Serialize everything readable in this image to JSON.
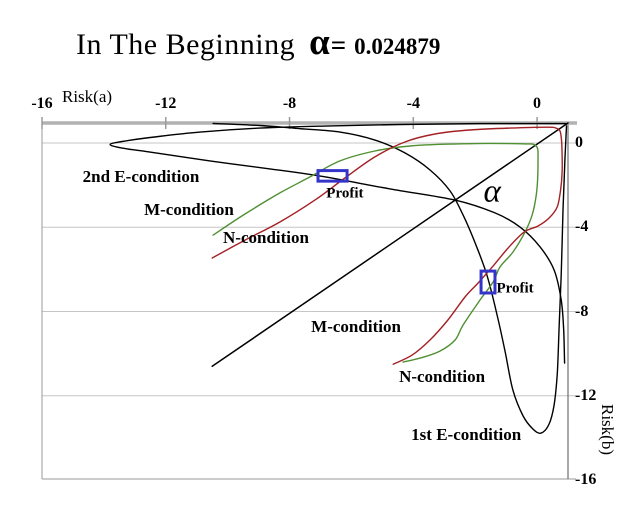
{
  "title": {
    "text": "In The Beginning",
    "alpha": "α",
    "equals": "=",
    "value": "0.024879"
  },
  "axes": {
    "x": {
      "label": "Risk(a)",
      "ticks": [
        -16,
        -12,
        -8,
        -4,
        0
      ],
      "range": [
        -16,
        1.0
      ]
    },
    "y": {
      "label": "Risk(b)",
      "ticks": [
        0,
        -4,
        -8,
        -12,
        -16
      ],
      "range": [
        -15.95,
        0.95
      ]
    }
  },
  "chart_data": {
    "type": "line",
    "title": "In The Beginning α = 0.024879",
    "alpha_value": "0.024879",
    "xlabel": "Risk(a)",
    "ylabel": "Risk(b)",
    "xlim": [
      -16,
      1
    ],
    "ylim": [
      -16,
      1
    ],
    "grid": "horizontal-only",
    "colors": {
      "black": "#000000",
      "red": "#a32025",
      "green": "#4f9032",
      "marker_blue": "#3434cb",
      "gridline": "#c6c6c6",
      "axis": "#b2b2b2"
    },
    "series": [
      {
        "name": "2nd E-condition",
        "color": "#000000",
        "width": 1.4,
        "points": [
          [
            0.94,
            0.92
          ],
          [
            -1.84,
            0.92
          ],
          [
            -4.43,
            0.88
          ],
          [
            -6.69,
            0.81
          ],
          [
            -8.95,
            0.71
          ],
          [
            -10.89,
            0.52
          ],
          [
            -12.51,
            0.26
          ],
          [
            -13.41,
            0.07
          ],
          [
            -13.8,
            -0.07
          ],
          [
            -13.41,
            -0.24
          ],
          [
            -12.51,
            -0.43
          ],
          [
            -10.57,
            -0.85
          ],
          [
            -8.63,
            -1.23
          ],
          [
            -7.01,
            -1.57
          ],
          [
            -4.75,
            -2.18
          ],
          [
            -2.65,
            -2.71
          ],
          [
            -1.36,
            -3.32
          ],
          [
            -0.55,
            -3.99
          ],
          [
            0.1,
            -4.94
          ],
          [
            0.55,
            -6.03
          ],
          [
            0.78,
            -7.45
          ],
          [
            0.86,
            -8.88
          ],
          [
            0.89,
            -10.45
          ]
        ]
      },
      {
        "name": "1st E-condition",
        "color": "#000000",
        "width": 1.4,
        "points": [
          [
            -10.47,
            0.93
          ],
          [
            -8.95,
            0.83
          ],
          [
            -7.66,
            0.68
          ],
          [
            -6.37,
            0.52
          ],
          [
            -5.24,
            0.14
          ],
          [
            -4.27,
            -0.47
          ],
          [
            -3.46,
            -1.28
          ],
          [
            -2.81,
            -2.28
          ],
          [
            -2.39,
            -3.42
          ],
          [
            -2.0,
            -4.75
          ],
          [
            -1.62,
            -6.27
          ],
          [
            -1.29,
            -8.17
          ],
          [
            -1.03,
            -9.92
          ],
          [
            -0.78,
            -11.73
          ],
          [
            -0.45,
            -12.96
          ],
          [
            -0.13,
            -13.58
          ],
          [
            0.13,
            -13.77
          ],
          [
            0.39,
            -13.34
          ],
          [
            0.55,
            -12.44
          ],
          [
            0.65,
            -11.02
          ],
          [
            0.71,
            -8.88
          ],
          [
            0.78,
            -6.27
          ],
          [
            0.84,
            -3.18
          ],
          [
            0.9,
            -0.81
          ],
          [
            0.95,
            0.81
          ]
        ]
      },
      {
        "name": "alpha line b=a",
        "color": "#000000",
        "width": 1.5,
        "points": [
          [
            -10.5,
            -10.6
          ],
          [
            1.0,
            0.95
          ]
        ]
      },
      {
        "name": "M-condition",
        "color": "#4f9032",
        "width": 1.4,
        "points": [
          [
            -10.47,
            -4.37
          ],
          [
            -9.44,
            -3.37
          ],
          [
            -8.31,
            -2.37
          ],
          [
            -7.34,
            -1.61
          ],
          [
            -6.37,
            -0.85
          ],
          [
            -5.24,
            -0.38
          ],
          [
            -4.1,
            -0.14
          ],
          [
            -2.81,
            -0.05
          ],
          [
            -1.52,
            -0.02
          ],
          [
            -0.36,
            -0.04
          ],
          [
            -0.1,
            -0.07
          ],
          [
            0.02,
            -0.28
          ],
          [
            0.03,
            -0.81
          ],
          [
            0.02,
            -1.66
          ],
          [
            -0.03,
            -2.52
          ],
          [
            -0.16,
            -3.42
          ],
          [
            -0.39,
            -4.23
          ],
          [
            -0.78,
            -5.18
          ],
          [
            -1.2,
            -5.89
          ],
          [
            -1.42,
            -6.6
          ],
          [
            -1.84,
            -7.45
          ],
          [
            -2.39,
            -8.64
          ],
          [
            -2.65,
            -9.35
          ],
          [
            -3.14,
            -9.88
          ],
          [
            -3.78,
            -10.21
          ],
          [
            -4.33,
            -10.4
          ]
        ]
      },
      {
        "name": "N-condition",
        "color": "#a32025",
        "width": 1.4,
        "points": [
          [
            -10.5,
            -5.46
          ],
          [
            -9.44,
            -4.61
          ],
          [
            -8.31,
            -3.75
          ],
          [
            -7.18,
            -2.71
          ],
          [
            -6.21,
            -1.66
          ],
          [
            -5.24,
            -0.66
          ],
          [
            -4.27,
            0.05
          ],
          [
            -3.3,
            0.43
          ],
          [
            -2.17,
            0.62
          ],
          [
            -0.87,
            0.71
          ],
          [
            0.36,
            0.75
          ],
          [
            0.61,
            0.71
          ],
          [
            0.74,
            0.57
          ],
          [
            0.79,
            0.14
          ],
          [
            0.81,
            -0.57
          ],
          [
            0.81,
            -1.38
          ],
          [
            0.76,
            -2.23
          ],
          [
            0.65,
            -3.04
          ],
          [
            0.39,
            -3.56
          ],
          [
            0.03,
            -3.94
          ],
          [
            -0.42,
            -4.23
          ],
          [
            -0.94,
            -4.99
          ],
          [
            -1.45,
            -5.89
          ],
          [
            -1.91,
            -6.65
          ],
          [
            -2.33,
            -7.31
          ],
          [
            -2.88,
            -8.4
          ],
          [
            -3.46,
            -9.35
          ],
          [
            -4.04,
            -10.07
          ],
          [
            -4.65,
            -10.5
          ]
        ]
      }
    ],
    "markers": [
      {
        "label": "Profit",
        "a": -7.08,
        "b": -1.31,
        "w": 0.94,
        "h": 0.5
      },
      {
        "label": "Profit",
        "a": -1.81,
        "b": -6.08,
        "w": 0.45,
        "h": 1.04
      }
    ],
    "annotations": [
      {
        "text": "2nd E-condition",
        "a": -12.8,
        "b": -1.61,
        "style": "cond"
      },
      {
        "text": "M-condition",
        "a": -11.25,
        "b": -3.18,
        "style": "cond"
      },
      {
        "text": "N-condition",
        "a": -8.76,
        "b": -4.51,
        "style": "cond"
      },
      {
        "text": "M-condition",
        "a": -5.85,
        "b": -8.74,
        "style": "cond"
      },
      {
        "text": "N-condition",
        "a": -3.07,
        "b": -11.11,
        "style": "cond"
      },
      {
        "text": "1st E-condition",
        "a": -2.29,
        "b": -13.86,
        "style": "cond"
      },
      {
        "text": "Profit",
        "a": -6.21,
        "b": -2.42,
        "style": "profit"
      },
      {
        "text": "Profit",
        "a": -0.71,
        "b": -6.93,
        "style": "profit"
      },
      {
        "text": "α",
        "a": -1.45,
        "b": -2.33,
        "style": "alphag"
      }
    ]
  }
}
